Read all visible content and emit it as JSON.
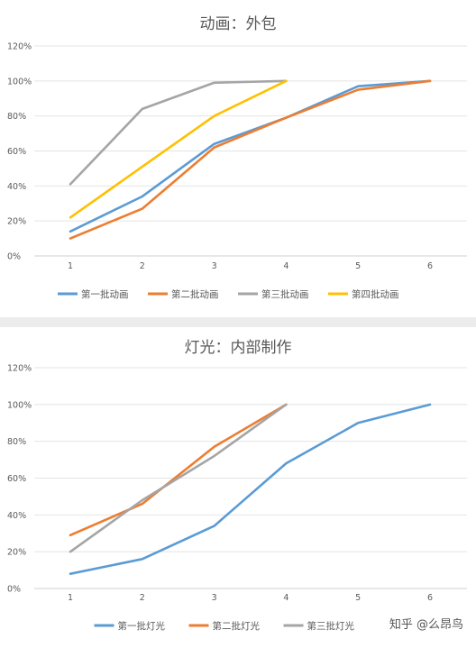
{
  "chart_data": [
    {
      "type": "line",
      "title": "动画：外包",
      "x": [
        1,
        2,
        3,
        4,
        5,
        6
      ],
      "x_tick_labels": [
        "1",
        "2",
        "3",
        "4",
        "5",
        "6"
      ],
      "ylim": [
        0,
        1.2
      ],
      "y_tick_labels": [
        "0%",
        "20%",
        "40%",
        "60%",
        "80%",
        "100%",
        "120%"
      ],
      "grid": true,
      "legend_position": "bottom",
      "series": [
        {
          "name": "第一批动画",
          "color": "#5b9bd5",
          "x": [
            1,
            2,
            3,
            4,
            5,
            6
          ],
          "values": [
            0.14,
            0.34,
            0.64,
            0.79,
            0.97,
            1.0
          ]
        },
        {
          "name": "第二批动画",
          "color": "#ed7d31",
          "x": [
            1,
            2,
            3,
            4,
            5,
            6
          ],
          "values": [
            0.1,
            0.27,
            0.62,
            0.79,
            0.95,
            1.0
          ]
        },
        {
          "name": "第三批动画",
          "color": "#a5a5a5",
          "x": [
            1,
            2,
            3,
            4
          ],
          "values": [
            0.41,
            0.84,
            0.99,
            1.0
          ]
        },
        {
          "name": "第四批动画",
          "color": "#ffc000",
          "x": [
            1,
            2,
            3,
            4
          ],
          "values": [
            0.22,
            0.51,
            0.8,
            1.0
          ]
        }
      ]
    },
    {
      "type": "line",
      "title": "灯光：内部制作",
      "x": [
        1,
        2,
        3,
        4,
        5,
        6
      ],
      "x_tick_labels": [
        "1",
        "2",
        "3",
        "4",
        "5",
        "6"
      ],
      "ylim": [
        0,
        1.2
      ],
      "y_tick_labels": [
        "0%",
        "20%",
        "40%",
        "60%",
        "80%",
        "100%",
        "120%"
      ],
      "grid": true,
      "legend_position": "bottom",
      "series": [
        {
          "name": "第一批灯光",
          "color": "#5b9bd5",
          "x": [
            1,
            2,
            3,
            4,
            5,
            6
          ],
          "values": [
            0.08,
            0.16,
            0.34,
            0.68,
            0.9,
            1.0
          ]
        },
        {
          "name": "第二批灯光",
          "color": "#ed7d31",
          "x": [
            1,
            2,
            3,
            4
          ],
          "values": [
            0.29,
            0.46,
            0.77,
            1.0
          ]
        },
        {
          "name": "第三批灯光",
          "color": "#a5a5a5",
          "x": [
            1,
            2,
            3,
            4
          ],
          "values": [
            0.2,
            0.48,
            0.72,
            1.0
          ]
        }
      ]
    }
  ],
  "watermark": "知乎 @么昂鸟"
}
